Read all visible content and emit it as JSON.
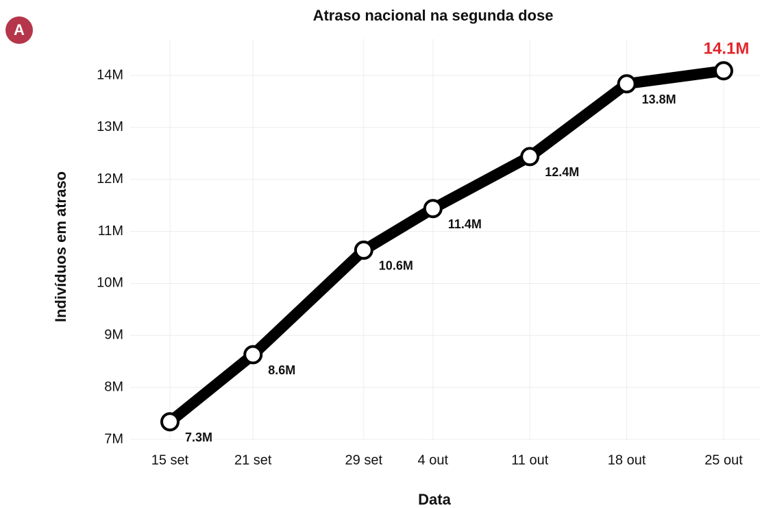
{
  "panel_label": "A",
  "chart_data": {
    "type": "line",
    "title": "Atraso nacional na segunda dose",
    "x_label": "Data",
    "y_label": "Indivíduos em atraso",
    "x": [
      "15 set",
      "21 set",
      "29 set",
      "4 out",
      "11 out",
      "18 out",
      "25 out"
    ],
    "series": [
      {
        "name": "Atraso",
        "color": "#000000",
        "values": [
          7.34,
          8.63,
          10.64,
          11.44,
          12.44,
          13.84,
          14.09
        ],
        "value_labels": [
          "7.3M",
          "8.6M",
          "10.6M",
          "11.4M",
          "12.4M",
          "13.8M",
          "14.1M"
        ],
        "value_label_colors": [
          "#111111",
          "#111111",
          "#111111",
          "#111111",
          "#111111",
          "#111111",
          "#e3262c"
        ]
      }
    ],
    "ylim": [
      7,
      14.7
    ],
    "yticks": [
      {
        "value": 7,
        "label": "7M"
      },
      {
        "value": 8,
        "label": "8M"
      },
      {
        "value": 9,
        "label": "9M"
      },
      {
        "value": 10,
        "label": "10M"
      },
      {
        "value": 11,
        "label": "11M"
      },
      {
        "value": 12,
        "label": "12M"
      },
      {
        "value": 13,
        "label": "13M"
      },
      {
        "value": 14,
        "label": "14M"
      }
    ],
    "grid": true
  }
}
